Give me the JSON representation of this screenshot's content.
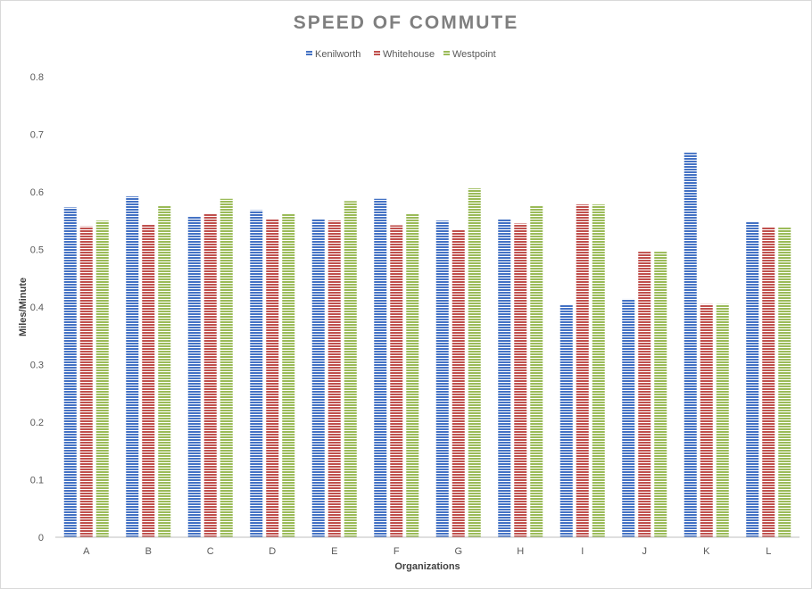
{
  "chart_data": {
    "type": "bar",
    "title": "SPEED OF COMMUTE",
    "xlabel": "Organizations",
    "ylabel": "Miles/Minute",
    "ylim": [
      0,
      0.8
    ],
    "yticks": [
      "0",
      "0.1",
      "0.2",
      "0.3",
      "0.4",
      "0.5",
      "0.6",
      "0.7",
      "0.8"
    ],
    "grid": false,
    "legend": "top",
    "categories": [
      "A",
      "B",
      "C",
      "D",
      "E",
      "F",
      "G",
      "H",
      "I",
      "J",
      "K",
      "L"
    ],
    "series": [
      {
        "name": "Kenilworth",
        "color": "#4472c4",
        "values": [
          0.573,
          0.592,
          0.557,
          0.568,
          0.552,
          0.588,
          0.55,
          0.553,
          0.404,
          0.414,
          0.668,
          0.548
        ]
      },
      {
        "name": "Whitehouse",
        "color": "#c0504d",
        "values": [
          0.54,
          0.544,
          0.562,
          0.552,
          0.55,
          0.542,
          0.534,
          0.545,
          0.578,
          0.496,
          0.405,
          0.538
        ]
      },
      {
        "name": "Westpoint",
        "color": "#9bbb59",
        "values": [
          0.55,
          0.576,
          0.588,
          0.562,
          0.584,
          0.562,
          0.606,
          0.576,
          0.578,
          0.496,
          0.405,
          0.538
        ]
      }
    ]
  }
}
